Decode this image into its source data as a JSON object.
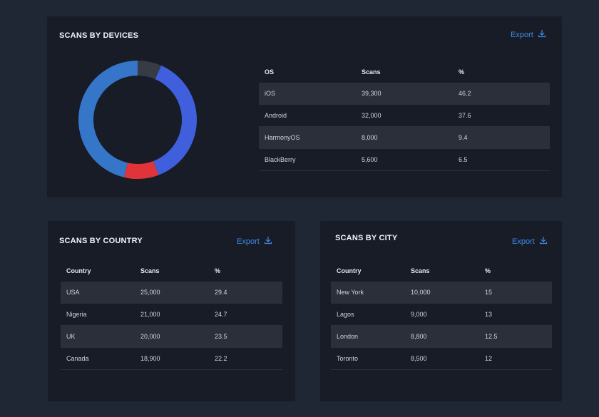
{
  "devices": {
    "title": "SCANS BY DEVICES",
    "export_label": "Export",
    "columns": [
      "OS",
      "Scans",
      "%"
    ],
    "rows": [
      [
        "iOS",
        "39,300",
        "46.2"
      ],
      [
        "Android",
        "32,000",
        "37.6"
      ],
      [
        "HarmonyOS",
        "8,000",
        "9.4"
      ],
      [
        "BlackBerry",
        "5,600",
        "6.5"
      ]
    ]
  },
  "country": {
    "title": "SCANS BY COUNTRY",
    "export_label": "Export",
    "columns": [
      "Country",
      "Scans",
      "%"
    ],
    "rows": [
      [
        "USA",
        "25,000",
        "29.4"
      ],
      [
        "Nigeria",
        "21,000",
        "24.7"
      ],
      [
        "UK",
        "20,000",
        "23.5"
      ],
      [
        "Canada",
        "18,900",
        "22.2"
      ]
    ]
  },
  "city": {
    "title": "SCANS BY CITY",
    "export_label": "Export",
    "columns": [
      "Country",
      "Scans",
      "%"
    ],
    "rows": [
      [
        "New York",
        "10,000",
        "15"
      ],
      [
        "Lagos",
        "9,000",
        "13"
      ],
      [
        "London",
        "8,800",
        "12.5"
      ],
      [
        "Toronto",
        "8,500",
        "12"
      ]
    ]
  },
  "chart_data": {
    "type": "pie",
    "categories": [
      "iOS",
      "Android",
      "HarmonyOS",
      "BlackBerry"
    ],
    "values": [
      46.2,
      37.6,
      9.4,
      6.5
    ],
    "colors": [
      "#3576c9",
      "#3f5fdc",
      "#e0343a",
      "#363b45"
    ]
  },
  "icons": {
    "export": "download-icon"
  }
}
